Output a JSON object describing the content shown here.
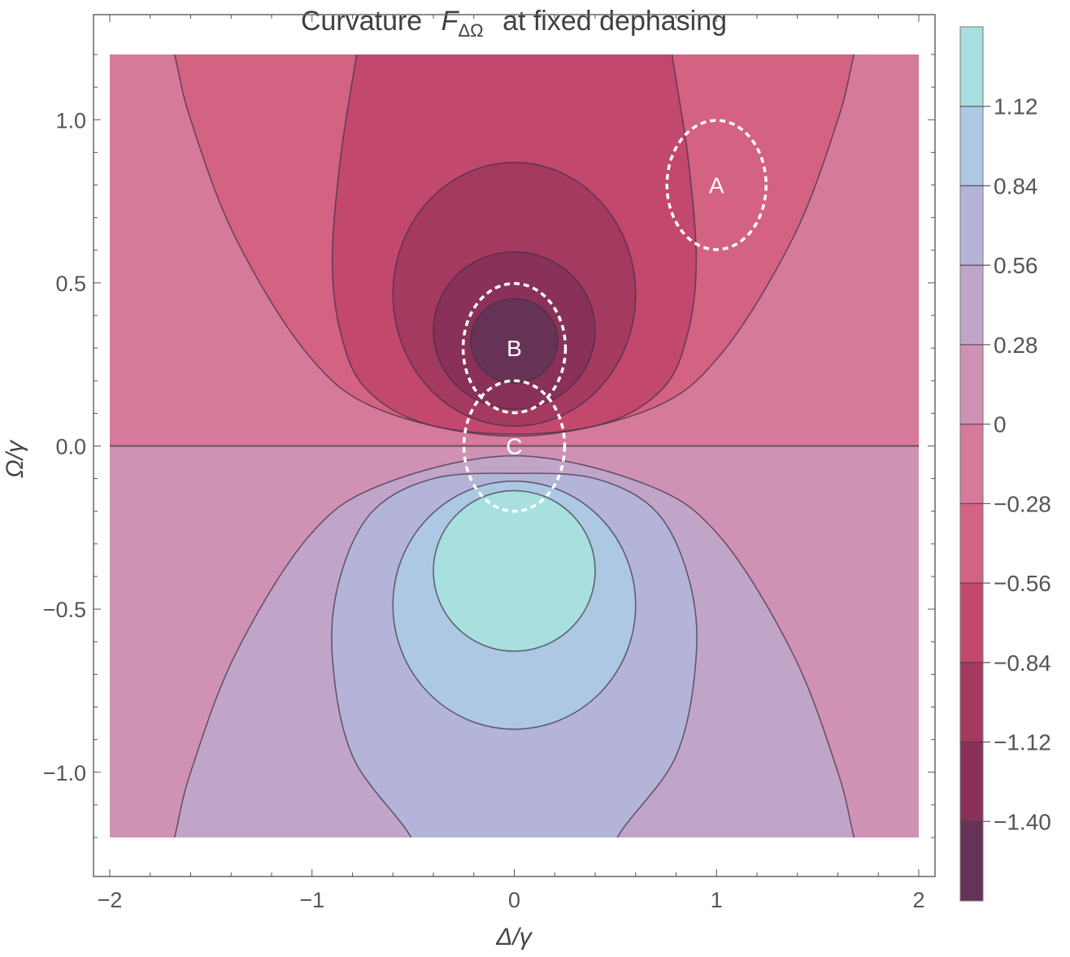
{
  "chart_data": {
    "type": "contour",
    "title": "Curvature",
    "title_symbol": "F",
    "title_subscript": "ΔΩ",
    "title_suffix": "at fixed dephasing",
    "xlabel": "Δ/γ",
    "ylabel": "Ω/γ",
    "xlim": [
      -2,
      2
    ],
    "ylim": [
      -1.2,
      1.2
    ],
    "x_ticks": [
      {
        "v": -2,
        "label": "−2"
      },
      {
        "v": -1,
        "label": "−1"
      },
      {
        "v": 0,
        "label": "0"
      },
      {
        "v": 1,
        "label": "1"
      },
      {
        "v": 2,
        "label": "2"
      }
    ],
    "y_ticks": [
      {
        "v": -1,
        "label": "−1.0"
      },
      {
        "v": -0.5,
        "label": "−0.5"
      },
      {
        "v": 0,
        "label": "0.0"
      },
      {
        "v": 0.5,
        "label": "0.5"
      },
      {
        "v": 1,
        "label": "1.0"
      }
    ],
    "colorbar": {
      "range": [
        -1.68,
        1.4
      ],
      "levels": [
        -1.4,
        -1.12,
        -0.84,
        -0.56,
        -0.28,
        0,
        0.28,
        0.56,
        0.84,
        1.12
      ],
      "level_labels": [
        "−1.40",
        "−1.12",
        "−0.84",
        "−0.56",
        "−0.28",
        "0",
        "0.28",
        "0.56",
        "0.84",
        "1.12"
      ],
      "band_colors": [
        "#663356",
        "#893158",
        "#a53a60",
        "#c2486e",
        "#d46283",
        "#d57a9a",
        "#cf92b5",
        "#c1a5c8",
        "#b3b4d8",
        "#adc8e3",
        "#a8dfdf"
      ]
    },
    "regions": [
      {
        "name": "upper-background",
        "band": 5,
        "rect": [
          -2,
          0,
          2,
          1.2
        ]
      },
      {
        "name": "lower-background",
        "band": 6,
        "rect": [
          -2,
          -1.2,
          2,
          0
        ]
      },
      {
        "name": "contour-minus-0.28",
        "band": 4,
        "half_points": [
          [
            -1.75,
            1.35
          ],
          [
            -1.68,
            1.2
          ],
          [
            -1.6,
            1.0
          ],
          [
            -1.38,
            0.64
          ],
          [
            -1.02,
            0.28
          ],
          [
            -0.66,
            0.11
          ],
          [
            0,
            0.03
          ]
        ]
      },
      {
        "name": "contour-minus-0.56",
        "band": 3,
        "half_points": [
          [
            -0.75,
            1.35
          ],
          [
            -0.78,
            1.2
          ],
          [
            -0.86,
            0.88
          ],
          [
            -0.9,
            0.57
          ],
          [
            -0.86,
            0.35
          ],
          [
            -0.74,
            0.18
          ],
          [
            -0.45,
            0.07
          ],
          [
            0,
            0.036
          ]
        ]
      },
      {
        "name": "contour-minus-0.84",
        "band": 2,
        "ellipse": [
          0,
          0.465,
          0.6,
          0.404
        ]
      },
      {
        "name": "contour-minus-1.12",
        "band": 1,
        "ellipse": [
          0,
          0.354,
          0.4,
          0.241
        ]
      },
      {
        "name": "contour-minus-1.40",
        "band": 0,
        "ellipse": [
          0,
          0.322,
          0.215,
          0.129
        ]
      },
      {
        "name": "contour-0.28",
        "band": 7,
        "half_points": [
          [
            -1.75,
            -1.35
          ],
          [
            -1.68,
            -1.2
          ],
          [
            -1.6,
            -1.0
          ],
          [
            -1.38,
            -0.64
          ],
          [
            -1.02,
            -0.28
          ],
          [
            -0.66,
            -0.12
          ],
          [
            0,
            -0.03
          ]
        ]
      },
      {
        "name": "contour-0.56",
        "band": 8,
        "half_points": [
          [
            -0.45,
            -1.35
          ],
          [
            -0.51,
            -1.2
          ],
          [
            -0.8,
            -0.95
          ],
          [
            -0.9,
            -0.64
          ],
          [
            -0.86,
            -0.4
          ],
          [
            -0.7,
            -0.2
          ],
          [
            -0.4,
            -0.1
          ],
          [
            0,
            -0.084
          ]
        ]
      },
      {
        "name": "contour-0.84",
        "band": 9,
        "ellipse": [
          0,
          -0.488,
          0.6,
          0.38
        ]
      },
      {
        "name": "contour-1.12",
        "band": 10,
        "ellipse": [
          0,
          -0.383,
          0.4,
          0.246
        ]
      }
    ],
    "annotations": [
      {
        "label": "A",
        "center": [
          1.0,
          0.8
        ],
        "radii": [
          0.245,
          0.198
        ]
      },
      {
        "label": "B",
        "center": [
          0.0,
          0.3
        ],
        "radii": [
          0.253,
          0.198
        ]
      },
      {
        "label": "C",
        "center": [
          0.0,
          0.0
        ],
        "radii": [
          0.249,
          0.2
        ]
      }
    ]
  }
}
